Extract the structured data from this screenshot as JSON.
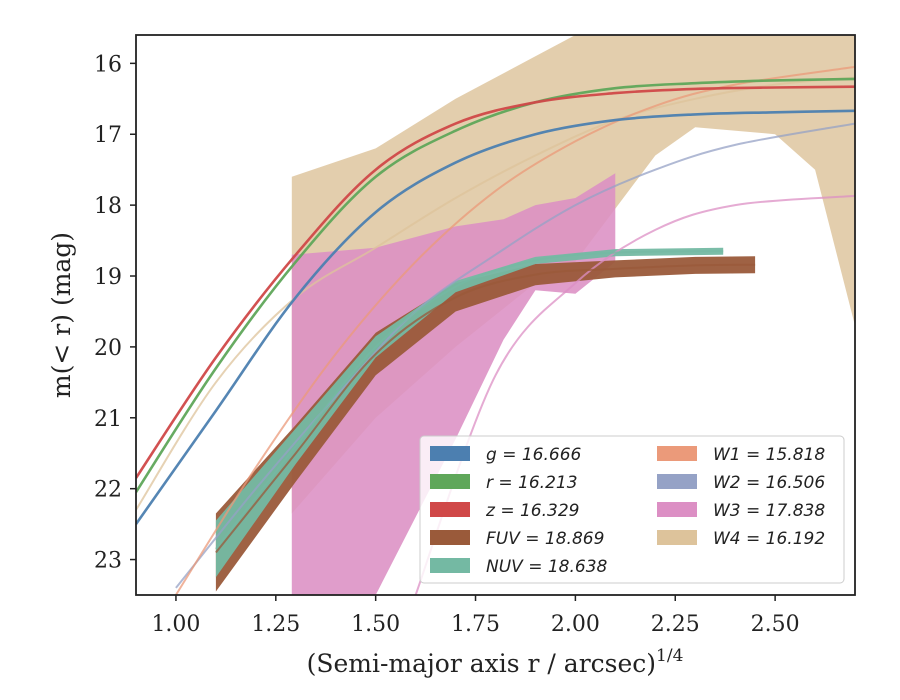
{
  "chart_data": {
    "type": "line",
    "xlabel": "(Semi-major axis r / arcsec)",
    "xlabel_superscript": "1/4",
    "ylabel": "m(< r) (mag)",
    "xlim": [
      0.9,
      2.7
    ],
    "ylim": [
      23.5,
      15.6
    ],
    "y_inverted": true,
    "x_ticks": [
      "1.00",
      "1.25",
      "1.50",
      "1.75",
      "2.00",
      "2.25",
      "2.50"
    ],
    "y_ticks": [
      "16",
      "17",
      "18",
      "19",
      "20",
      "21",
      "22",
      "23"
    ],
    "grid": false,
    "legend_position": "lower-right",
    "legend": [
      {
        "label": "g = 16.666",
        "color": "#4c7fb0"
      },
      {
        "label": "r = 16.213",
        "color": "#5fa75a"
      },
      {
        "label": "z = 16.329",
        "color": "#d04848"
      },
      {
        "label": "FUV = 18.869",
        "color": "#9a5a3a"
      },
      {
        "label": "NUV = 18.638",
        "color": "#74b9a3"
      },
      {
        "label": "W1 = 15.818",
        "color": "#eb9a7a"
      },
      {
        "label": "W2 = 16.506",
        "color": "#95a2c6"
      },
      {
        "label": "W3 = 17.838",
        "color": "#dc8fc4"
      },
      {
        "label": "W4 = 16.192",
        "color": "#ddc39b"
      }
    ],
    "series": [
      {
        "name": "g",
        "color": "#4c7fb0",
        "total": 16.666,
        "x": [
          0.9,
          1.1,
          1.3,
          1.5,
          1.7,
          1.9,
          2.1,
          2.3,
          2.5,
          2.7
        ],
        "y": [
          22.5,
          20.9,
          19.3,
          18.1,
          17.4,
          17.0,
          16.8,
          16.72,
          16.69,
          16.67
        ]
      },
      {
        "name": "r",
        "color": "#5fa75a",
        "total": 16.213,
        "x": [
          0.9,
          1.1,
          1.3,
          1.5,
          1.7,
          1.9,
          2.1,
          2.3,
          2.5,
          2.7
        ],
        "y": [
          22.05,
          20.3,
          18.8,
          17.6,
          16.95,
          16.55,
          16.35,
          16.28,
          16.24,
          16.22
        ]
      },
      {
        "name": "z",
        "color": "#d04848",
        "total": 16.329,
        "x": [
          0.9,
          1.1,
          1.3,
          1.5,
          1.7,
          1.9,
          2.1,
          2.3,
          2.5,
          2.7
        ],
        "y": [
          21.85,
          20.15,
          18.7,
          17.5,
          16.85,
          16.55,
          16.42,
          16.36,
          16.34,
          16.33
        ]
      },
      {
        "name": "FUV",
        "color": "#9a5a3a",
        "total": 18.869,
        "x": [
          1.1,
          1.3,
          1.5,
          1.7,
          1.9,
          2.1,
          2.3,
          2.45
        ],
        "y": [
          22.9,
          21.5,
          20.1,
          19.3,
          18.98,
          18.9,
          18.85,
          18.84
        ],
        "band": [
          0.55,
          0.4,
          0.3,
          0.2,
          0.15,
          0.12,
          0.12,
          0.12
        ]
      },
      {
        "name": "NUV",
        "color": "#74b9a3",
        "total": 18.638,
        "x": [
          1.1,
          1.3,
          1.5,
          1.7,
          1.9,
          2.1,
          2.37
        ],
        "y": [
          22.85,
          21.4,
          20.0,
          19.15,
          18.78,
          18.67,
          18.65
        ],
        "band": [
          0.4,
          0.25,
          0.15,
          0.08,
          0.05,
          0.05,
          0.05
        ]
      },
      {
        "name": "W1",
        "color": "#eb9a7a",
        "total": 15.818,
        "x": [
          1.0,
          1.2,
          1.4,
          1.6,
          1.8,
          2.0,
          2.2,
          2.4,
          2.7
        ],
        "y": [
          23.5,
          21.7,
          20.1,
          18.8,
          17.8,
          17.1,
          16.6,
          16.3,
          16.05
        ]
      },
      {
        "name": "W2",
        "color": "#95a2c6",
        "total": 16.506,
        "x": [
          1.0,
          1.2,
          1.4,
          1.6,
          1.8,
          2.0,
          2.2,
          2.4,
          2.7
        ],
        "y": [
          23.4,
          22.0,
          20.7,
          19.5,
          18.7,
          18.0,
          17.5,
          17.15,
          16.85
        ]
      },
      {
        "name": "W3",
        "color": "#dc8fc4",
        "total": 17.838,
        "band_x": [
          1.29,
          1.5,
          1.7,
          1.82,
          1.9,
          2.0,
          2.1
        ],
        "band_upper": [
          18.7,
          18.6,
          18.3,
          18.2,
          18.0,
          17.9,
          17.55
        ],
        "band_lower": [
          23.5,
          23.5,
          21.3,
          19.9,
          19.2,
          19.25,
          18.8
        ],
        "x": [
          1.6,
          1.8,
          2.0,
          2.2,
          2.4,
          2.7
        ],
        "y": [
          23.5,
          20.4,
          19.1,
          18.35,
          18.0,
          17.87
        ]
      },
      {
        "name": "W4",
        "color": "#ddc39b",
        "total": 16.192,
        "band_x": [
          1.29,
          1.5,
          1.7,
          1.9,
          2.0,
          2.2,
          2.3,
          2.5,
          2.6,
          2.7
        ],
        "band_upper": [
          17.6,
          17.2,
          16.5,
          15.9,
          15.6,
          15.6,
          15.6,
          15.6,
          15.6,
          15.6
        ],
        "band_lower": [
          22.35,
          21.0,
          20.0,
          19.1,
          18.8,
          17.3,
          16.9,
          17.0,
          17.5,
          19.7
        ],
        "x": [
          0.9,
          1.1,
          1.3,
          1.5,
          1.7,
          1.9,
          2.1,
          2.3,
          2.5,
          2.7
        ],
        "y": [
          22.3,
          20.5,
          19.3,
          18.6,
          17.9,
          17.3,
          16.8,
          16.5,
          16.3,
          16.2
        ]
      }
    ]
  }
}
